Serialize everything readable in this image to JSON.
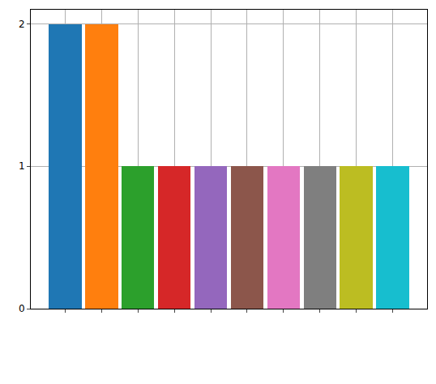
{
  "chart_data": {
    "type": "bar",
    "categories": [
      null,
      null,
      null,
      null,
      null,
      null,
      null,
      null,
      null,
      null
    ],
    "values": [
      2,
      2,
      1,
      1,
      1,
      1,
      1,
      1,
      1,
      1
    ],
    "colors": [
      "#1f77b4",
      "#ff7f0e",
      "#2ca02c",
      "#d62728",
      "#9467bd",
      "#8c564b",
      "#e377c2",
      "#7f7f7f",
      "#bcbd22",
      "#17becf"
    ],
    "ylim": [
      0,
      2.1
    ],
    "yticks": [
      0,
      1,
      2
    ],
    "grid": true,
    "tick_labels": "y"
  }
}
